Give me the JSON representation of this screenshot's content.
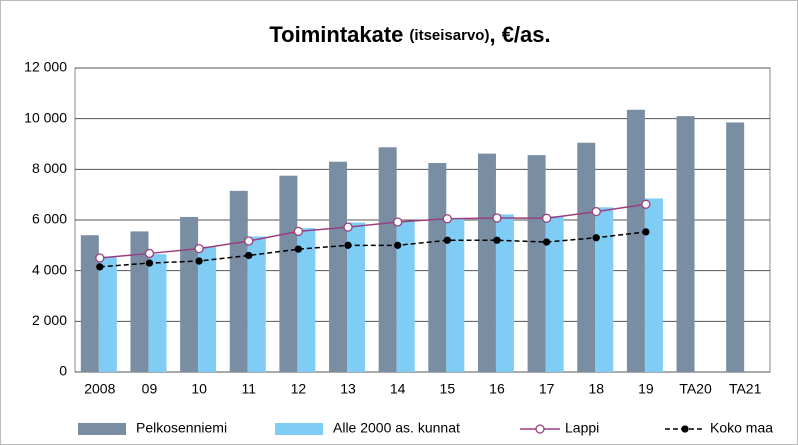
{
  "chart_data": {
    "type": "bar-line",
    "title": [
      "Toimintakate",
      "(itseisarvo)",
      ", €/as."
    ],
    "categories": [
      "2008",
      "09",
      "10",
      "11",
      "12",
      "13",
      "14",
      "15",
      "16",
      "17",
      "18",
      "19",
      "TA20",
      "TA21"
    ],
    "series": [
      {
        "name": "Pelkosenniemi",
        "kind": "bar",
        "color": "#7a8ea3",
        "values": [
          5400,
          5550,
          6120,
          7150,
          7750,
          8300,
          8870,
          8250,
          8620,
          8560,
          9050,
          10350,
          10100,
          9850
        ]
      },
      {
        "name": "Alle 2000 as. kunnat",
        "kind": "bar",
        "color": "#7fcdf4",
        "values": [
          4550,
          4650,
          4950,
          5350,
          5680,
          5900,
          5950,
          6050,
          6220,
          6150,
          6500,
          6850,
          null,
          null
        ]
      },
      {
        "name": "Lappi",
        "kind": "line",
        "color": "#9b3f7e",
        "values": [
          4500,
          4680,
          4870,
          5170,
          5550,
          5720,
          5920,
          6050,
          6080,
          6070,
          6330,
          6620,
          null,
          null
        ]
      },
      {
        "name": "Koko maa",
        "kind": "dashed-line",
        "color": "#000000",
        "values": [
          4150,
          4300,
          4380,
          4600,
          4850,
          5000,
          5000,
          5200,
          5200,
          5130,
          5300,
          5530,
          null,
          null
        ]
      }
    ],
    "ylim": [
      0,
      12000
    ],
    "yticks": [
      0,
      {
        "value": 2000,
        "label": "2 000"
      },
      {
        "value": 4000,
        "label": "4 000"
      },
      {
        "value": 6000,
        "label": "6 000"
      },
      {
        "value": 8000,
        "label": "8 000"
      },
      {
        "value": 10000,
        "label": "10 000"
      },
      {
        "value": 12000,
        "label": "12 000"
      }
    ],
    "grid": true
  }
}
